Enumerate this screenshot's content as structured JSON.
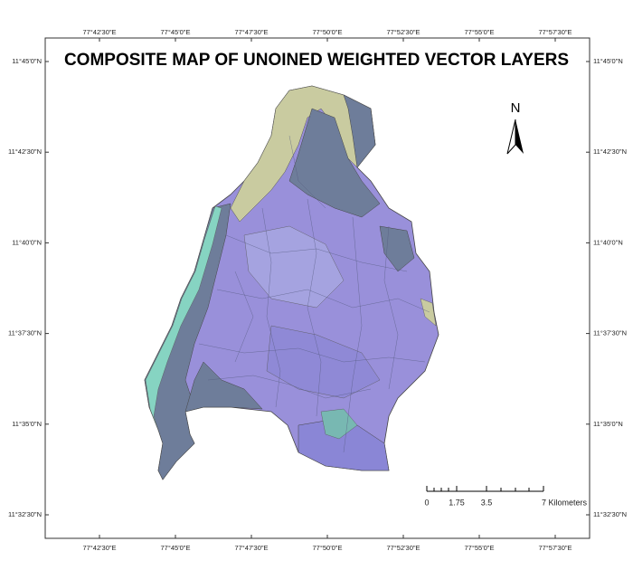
{
  "map": {
    "title": "COMPOSITE MAP OF UNOINED WEIGHTED VECTOR LAYERS",
    "longitude_labels": [
      "77°42'30\"E",
      "77°45'0\"E",
      "77°47'30\"E",
      "77°50'0\"E",
      "77°52'30\"E",
      "77°55'0\"E",
      "77°57'30\"E"
    ],
    "latitude_labels": [
      "11°45'0\"N",
      "11°42'30\"N",
      "11°40'0\"N",
      "11°37'30\"N",
      "11°35'0\"N",
      "11°32'30\"N"
    ],
    "north_label": "N",
    "scale_bar": {
      "labels": [
        "0",
        "1.75",
        "3.5",
        "7 Kilometers"
      ]
    }
  }
}
